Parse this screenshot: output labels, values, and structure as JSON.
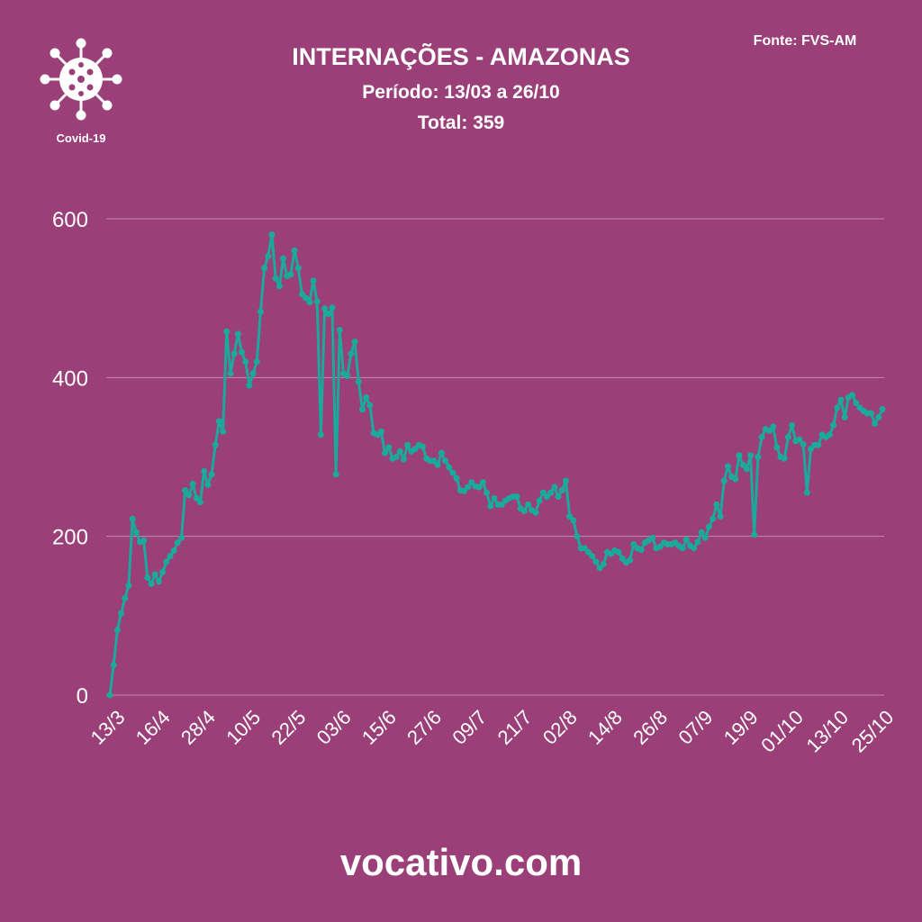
{
  "chart_data": {
    "type": "line",
    "title": "INTERNAÇÕES - AMAZONAS",
    "subtitle": "Período: 13/03 a 26/10",
    "total": "Total: 359",
    "source": "Fonte: FVS-AM",
    "logo": "Covid-19",
    "footer": "vocativo.com",
    "categories": [
      "13/3",
      null,
      null,
      null,
      null,
      null,
      null,
      null,
      null,
      null,
      null,
      null,
      "16/4",
      null,
      null,
      null,
      null,
      null,
      null,
      null,
      null,
      null,
      null,
      null,
      "28/4",
      null,
      null,
      null,
      null,
      null,
      null,
      null,
      null,
      null,
      null,
      null,
      "10/5",
      null,
      null,
      null,
      null,
      null,
      null,
      null,
      null,
      null,
      null,
      null,
      "22/5",
      null,
      null,
      null,
      null,
      null,
      null,
      null,
      null,
      null,
      null,
      null,
      "03/6",
      null,
      null,
      null,
      null,
      null,
      null,
      null,
      null,
      null,
      null,
      null,
      "15/6",
      null,
      null,
      null,
      null,
      null,
      null,
      null,
      null,
      null,
      null,
      null,
      "27/6",
      null,
      null,
      null,
      null,
      null,
      null,
      null,
      null,
      null,
      null,
      null,
      "09/7",
      null,
      null,
      null,
      null,
      null,
      null,
      null,
      null,
      null,
      null,
      null,
      "21/7",
      null,
      null,
      null,
      null,
      null,
      null,
      null,
      null,
      null,
      null,
      null,
      "02/8",
      null,
      null,
      null,
      null,
      null,
      null,
      null,
      null,
      null,
      null,
      null,
      "14/8",
      null,
      null,
      null,
      null,
      null,
      null,
      null,
      null,
      null,
      null,
      null,
      "26/8",
      null,
      null,
      null,
      null,
      null,
      null,
      null,
      null,
      null,
      null,
      null,
      "07/9",
      null,
      null,
      null,
      null,
      null,
      null,
      null,
      null,
      null,
      null,
      null,
      "19/9",
      null,
      null,
      null,
      null,
      null,
      null,
      null,
      null,
      null,
      null,
      null,
      "01/10",
      null,
      null,
      null,
      null,
      null,
      null,
      null,
      null,
      null,
      null,
      null,
      "13/10",
      null,
      null,
      null,
      null,
      null,
      null,
      null,
      null,
      null,
      null,
      null,
      "25/10",
      null
    ],
    "values": [
      0,
      38,
      82,
      103,
      122,
      138,
      222,
      205,
      193,
      195,
      148,
      140,
      152,
      143,
      155,
      168,
      175,
      182,
      192,
      198,
      258,
      252,
      266,
      248,
      243,
      282,
      265,
      278,
      315,
      345,
      332,
      458,
      405,
      430,
      455,
      432,
      420,
      390,
      405,
      420,
      483,
      538,
      553,
      580,
      525,
      515,
      550,
      528,
      530,
      560,
      538,
      505,
      500,
      495,
      522,
      496,
      328,
      487,
      480,
      488,
      278,
      460,
      405,
      402,
      430,
      445,
      395,
      360,
      375,
      365,
      330,
      328,
      332,
      305,
      312,
      298,
      300,
      307,
      297,
      315,
      307,
      310,
      315,
      313,
      298,
      295,
      295,
      290,
      305,
      295,
      287,
      280,
      273,
      258,
      257,
      262,
      268,
      263,
      262,
      268,
      255,
      238,
      248,
      240,
      240,
      245,
      248,
      250,
      250,
      235,
      232,
      240,
      233,
      230,
      245,
      255,
      250,
      255,
      262,
      250,
      258,
      270,
      225,
      220,
      200,
      185,
      185,
      180,
      175,
      168,
      160,
      165,
      180,
      178,
      182,
      180,
      172,
      167,
      170,
      190,
      185,
      183,
      192,
      195,
      198,
      185,
      187,
      192,
      190,
      190,
      192,
      188,
      185,
      196,
      188,
      185,
      193,
      205,
      198,
      212,
      222,
      240,
      225,
      270,
      288,
      275,
      272,
      302,
      290,
      285,
      302,
      202,
      300,
      325,
      335,
      333,
      338,
      312,
      300,
      298,
      325,
      340,
      320,
      322,
      316,
      255,
      310,
      315,
      315,
      328,
      325,
      328,
      340,
      362,
      372,
      350,
      375,
      378,
      368,
      362,
      358,
      355,
      355,
      342,
      350,
      360
    ],
    "color": "#1aa99b",
    "ylim": [
      0,
      600
    ],
    "yticks": [
      0,
      200,
      400,
      600
    ],
    "grid": true
  }
}
